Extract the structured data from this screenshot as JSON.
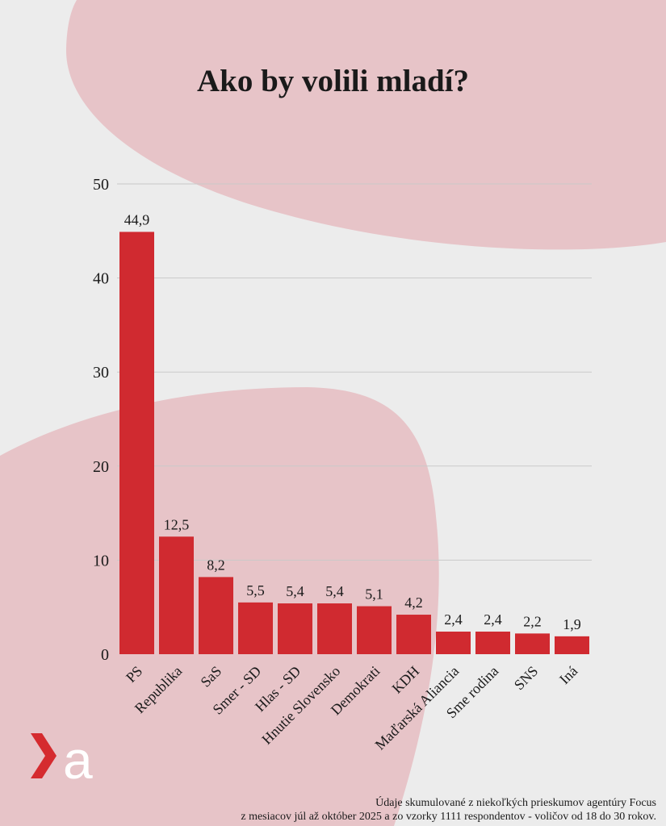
{
  "title": "Ako by volili mladí?",
  "footnote": {
    "line1": "Údaje skumulované z niekoľkých prieskumov agentúry Focus",
    "line2": "z mesiacov júl až október 2025 a zo vzorky 1111 respondentov - voličov od 18 do 30 rokov."
  },
  "logo": {
    "icon": "dennik-n-logo-icon",
    "letter": "a",
    "color_arrow": "#d52b2f",
    "color_letter": "#ffffff"
  },
  "colors": {
    "bar": "#d02a30",
    "background": "#ececec",
    "blob": "#e7c4c8",
    "grid": "#c9c9c9",
    "text": "#1a1a1a"
  },
  "chart_data": {
    "type": "bar",
    "title": "Ako by volili mladí?",
    "xlabel": "",
    "ylabel": "",
    "ylim": [
      0,
      50
    ],
    "yticks": [
      0,
      10,
      20,
      30,
      40,
      50
    ],
    "grid": true,
    "categories": [
      "PS",
      "Republika",
      "SaS",
      "Smer - SD",
      "Hlas - SD",
      "Hnutie Slovensko",
      "Demokrati",
      "KDH",
      "Maďarská Aliancia",
      "Sme rodina",
      "SNS",
      "Iná"
    ],
    "values": [
      44.9,
      12.5,
      8.2,
      5.5,
      5.4,
      5.4,
      5.1,
      4.2,
      2.4,
      2.4,
      2.2,
      1.9
    ],
    "value_labels": [
      "44,9",
      "12,5",
      "8,2",
      "5,5",
      "5,4",
      "5,4",
      "5,1",
      "4,2",
      "2,4",
      "2,4",
      "2,2",
      "1,9"
    ]
  }
}
